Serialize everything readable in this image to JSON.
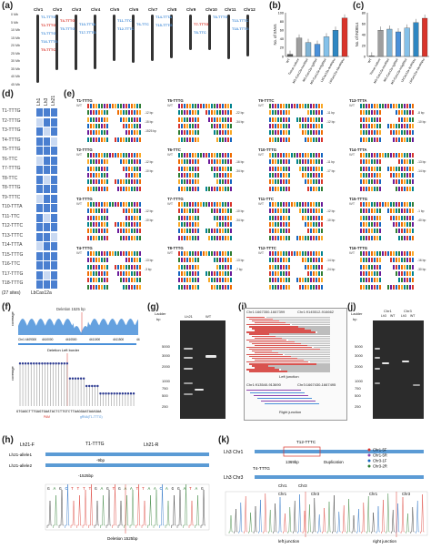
{
  "panels": {
    "a": "(a)",
    "b": "(b)",
    "c": "(c)",
    "d": "(d)",
    "e": "(e)",
    "f": "(f)",
    "g": "(g)",
    "h": "(h)",
    "i": "(i)",
    "j": "(j)",
    "k": "(k)"
  },
  "panel_a": {
    "chromosomes": [
      "Chr1",
      "Chr2",
      "Chr3",
      "Chr4",
      "Chr5",
      "Chr6",
      "Chr7",
      "Chr8",
      "Chr9",
      "Chr10",
      "Chr11",
      "Chr12"
    ],
    "scale": [
      "0 Mb",
      "5 Mb",
      "10 Mb",
      "15 Mb",
      "20 Mb",
      "25 Mb",
      "30 Mb",
      "35 Mb",
      "40 Mb",
      "45 Mb"
    ],
    "labels": [
      {
        "chr": 0,
        "text": "T1-TTTG",
        "color": "#4a90d9"
      },
      {
        "chr": 0,
        "text": "T2-TTTG",
        "color": "#d9342b"
      },
      {
        "chr": 0,
        "text": "T3-TTTG",
        "color": "#4a90d9"
      },
      {
        "chr": 0,
        "text": "T16-TTTG",
        "color": "#4a90d9"
      },
      {
        "chr": 0,
        "text": "T9-TTTC",
        "color": "#d9342b"
      },
      {
        "chr": 1,
        "text": "T4-TTTG",
        "color": "#d9342b"
      },
      {
        "chr": 1,
        "text": "T5-TTTG",
        "color": "#4a90d9"
      },
      {
        "chr": 2,
        "text": "T10-TTTA",
        "color": "#4a90d9"
      },
      {
        "chr": 2,
        "text": "T17-TTTG",
        "color": "#4a90d9"
      },
      {
        "chr": 4,
        "text": "T11-TTC",
        "color": "#4a90d9"
      },
      {
        "chr": 4,
        "text": "T12-TTTC",
        "color": "#4a90d9"
      },
      {
        "chr": 5,
        "text": "T6-TTC",
        "color": "#4a90d9"
      },
      {
        "chr": 6,
        "text": "T14-TTTA",
        "color": "#4a90d9"
      },
      {
        "chr": 6,
        "text": "T15-TTTG",
        "color": "#4a90d9"
      },
      {
        "chr": 8,
        "text": "T7-TTTG",
        "color": "#d9342b"
      },
      {
        "chr": 8,
        "text": "T8-TTC",
        "color": "#4a90d9"
      },
      {
        "chr": 9,
        "text": "T8-TTTG",
        "color": "#4a90d9"
      },
      {
        "chr": 10,
        "text": "T13-TTTC",
        "color": "#4a90d9"
      },
      {
        "chr": 10,
        "text": "T18-TTTG",
        "color": "#4a90d9"
      }
    ]
  },
  "panel_b": {
    "ylabel": "No. of SNVs",
    "yticks": [
      "0",
      "20",
      "40",
      "60",
      "80",
      "100"
    ],
    "categories": [
      "WT",
      "Tissue culture",
      "MS-Cas12a-mcrRNA",
      "MS-Cas12a-sgRNA",
      "MS-Cas12a-mSgRNA",
      "LbCas12a-4crRNAs",
      "LbCas12a-10crRNAs"
    ],
    "values": [
      5,
      42,
      32,
      28,
      45,
      60,
      88
    ],
    "colors": [
      "#555555",
      "#9e9e9e",
      "#7fb3d5",
      "#4a90d9",
      "#85c1e9",
      "#2e86c1",
      "#d9342b"
    ]
  },
  "panel_c": {
    "ylabel": "No. of INDELs",
    "yticks": [
      "0",
      "20",
      "40",
      "60",
      "80"
    ],
    "values": [
      1,
      48,
      50,
      45,
      52,
      62,
      70
    ],
    "colors": [
      "#555555",
      "#9e9e9e",
      "#7fb3d5",
      "#4a90d9",
      "#85c1e9",
      "#2e86c1",
      "#d9342b"
    ]
  },
  "panel_d": {
    "columns": [
      "Lh1",
      "Lh3",
      "Lh21"
    ],
    "rows": [
      "T1-TTTG",
      "T2-TTTG",
      "T3-TTTG",
      "T4-TTTG",
      "T5-TTTG",
      "T6-TTC",
      "T7-TTTG",
      "T8-TTC",
      "T8-TTTG",
      "T9-TTTC",
      "T10-TTTA",
      "T11-TTC",
      "T12-TTTC",
      "T13-TTTC",
      "T14-TTTA",
      "T15-TTTG",
      "T16-TTC",
      "T17-TTTG",
      "T18-TTTG"
    ],
    "footer": "(27 sites)",
    "footer2": "LbCas12a",
    "cells": [
      [
        1,
        1,
        1
      ],
      [
        0,
        1,
        1
      ],
      [
        1,
        0,
        1
      ],
      [
        1,
        1,
        0
      ],
      [
        1,
        1,
        1
      ],
      [
        0,
        1,
        1
      ],
      [
        1,
        1,
        1
      ],
      [
        1,
        0,
        1
      ],
      [
        1,
        1,
        1
      ],
      [
        0,
        1,
        1
      ],
      [
        1,
        1,
        1
      ],
      [
        1,
        0,
        1
      ],
      [
        1,
        1,
        1
      ],
      [
        1,
        1,
        0
      ],
      [
        0,
        1,
        1
      ],
      [
        1,
        1,
        1
      ],
      [
        1,
        1,
        1
      ],
      [
        1,
        0,
        1
      ],
      [
        1,
        1,
        1
      ]
    ]
  },
  "panel_e": {
    "blocks": [
      {
        "title": "T1-TTTG",
        "rets": [
          "-12 bp",
          "-15 bp",
          "-1525 bp"
        ]
      },
      {
        "title": "T2-TTTG",
        "rets": [
          "-12 bp",
          "-10 bp"
        ]
      },
      {
        "title": "T3-TTTG",
        "rets": [
          "-12 bp",
          "-10 bp"
        ]
      },
      {
        "title": "T4-TTTG",
        "rets": [
          "-13 bp",
          "-3 bp"
        ]
      },
      {
        "title": "T5-TTTG",
        "rets": [
          "-22 bp",
          "-34 bp"
        ]
      },
      {
        "title": "T6-TTC",
        "rets": [
          "-16 bp",
          "-34 bp"
        ]
      },
      {
        "title": "T7-TTTG",
        "rets": [
          "-10 bp",
          "-34 bp"
        ]
      },
      {
        "title": "T8-TTTG",
        "rets": [
          "-13 bp",
          "-7 bp"
        ]
      },
      {
        "title": "T9-TTTC",
        "rets": [
          "-11 bp",
          "-12 bp"
        ]
      },
      {
        "title": "T10-TTTG",
        "rets": [
          "-11 bp",
          "-17 bp"
        ]
      },
      {
        "title": "T11-TTC",
        "rets": [
          "-12 bp",
          "-10 bp"
        ]
      },
      {
        "title": "T12-TTTC",
        "rets": [
          "-14 bp",
          "-24 bp"
        ]
      },
      {
        "title": "T13-TTTA",
        "rets": [
          "-8 bp",
          "-10 bp"
        ]
      },
      {
        "title": "T14-TTTA",
        "rets": [
          "-13 bp",
          "-14 bp"
        ]
      },
      {
        "title": "T15-TTTG",
        "rets": [
          "-1 bp",
          "-40 bp"
        ]
      },
      {
        "title": "T16-TTTG",
        "rets": [
          "-16 bp",
          "-30 bp"
        ]
      }
    ]
  },
  "panel_f": {
    "coverage_label": "coverage",
    "deletion_label": "Deletion 1525 bp",
    "positions": [
      "Chr1 4409300",
      "4410000",
      "4410500",
      "4411000",
      "4411500",
      "4412500"
    ],
    "left_border": "Deletion  Left border",
    "sequence": "GTGAGCTTTGAGTGAATACTCTTGTCTTAAGGAATAAAGAA",
    "pam": "PAM",
    "pam2": "gRNA(T1-TTTG)"
  },
  "panel_g": {
    "ladder": "Ladder",
    "bp": "bp",
    "lanes": [
      "Lh21",
      "WT"
    ],
    "sizes": [
      "5000",
      "3000",
      "2000",
      "1000",
      "750",
      "500",
      "250"
    ]
  },
  "panel_i": {
    "top": "Chr1:1667350-1667399",
    "top2": "Chr1:9145512-916662",
    "left_junction": "Left junction",
    "bottom": "Chr1:913540-913690",
    "bottom2": "Chr3:1667430-1667495",
    "right_junction": "Right junction"
  },
  "panel_j": {
    "ladder": "Ladder",
    "bp": "bp",
    "groups": [
      "Chr1",
      "Chr3"
    ],
    "lanes": [
      "Lh3",
      "WT",
      "Lh3",
      "WT"
    ],
    "sizes": [
      "5000",
      "3000",
      "2000",
      "1000",
      "750",
      "500",
      "250"
    ]
  },
  "panel_h": {
    "f_primer": "Lh21-F",
    "r_primer": "Lh21-R",
    "target": "T1-TTTG",
    "allele1": "Lh21-allele1",
    "allele2": "Lh21-allele2",
    "del1": "-9bp",
    "del2": "-1525bp",
    "seq": "GAGCTTTTGAGTGAATTAACAGGATAG",
    "deletion": "Deletion 1525bp"
  },
  "panel_k": {
    "lh3chr1": "Lh3 Chr1",
    "lh3chr3": "Lh3 Chr3",
    "t12": "T12-TTTC",
    "t4": "T4-TTTG",
    "bp": "1369bp",
    "dup": "Duplication",
    "chr1": "Chr1",
    "chr3": "Chr3",
    "primers": [
      "Chr1-5F",
      "Chr1-5R",
      "Chr3-1F",
      "Chr3-2R"
    ],
    "left": "left junction",
    "right": "right junction"
  }
}
